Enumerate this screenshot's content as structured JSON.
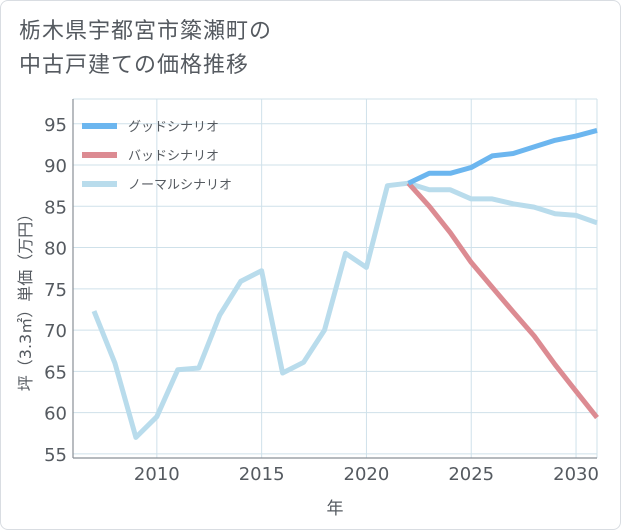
{
  "title": {
    "line1": "栃木県宇都宮市簗瀬町の",
    "line2": "中古戸建ての価格推移"
  },
  "colors": {
    "good": "#6cb6ef",
    "bad": "#dc8b92",
    "normal": "#b9dcec",
    "grid": "#cfe1ea",
    "text": "#555a60"
  },
  "chart_data": {
    "type": "line",
    "title": "栃木県宇都宮市簗瀬町の中古戸建ての価格推移",
    "xlabel": "年",
    "ylabel": "坪（3.3㎡）単価（万円）",
    "xlim": [
      2006,
      2031
    ],
    "ylim": [
      54.5,
      98
    ],
    "xticks": [
      2010,
      2015,
      2020,
      2025,
      2030
    ],
    "yticks": [
      55,
      60,
      65,
      70,
      75,
      80,
      85,
      90,
      95
    ],
    "grid": true,
    "legend_position": "top-left",
    "series": [
      {
        "name": "グッドシナリオ",
        "key": "good",
        "x": [
          2022,
          2023,
          2024,
          2025,
          2026,
          2027,
          2028,
          2029,
          2030,
          2031
        ],
        "values": [
          87.8,
          89.0,
          89.0,
          89.7,
          91.1,
          91.4,
          92.2,
          93.0,
          93.5,
          94.2
        ]
      },
      {
        "name": "バッドシナリオ",
        "key": "bad",
        "x": [
          2022,
          2023,
          2024,
          2025,
          2026,
          2027,
          2028,
          2029,
          2030,
          2031
        ],
        "values": [
          87.8,
          85.0,
          81.8,
          78.2,
          75.2,
          72.2,
          69.3,
          65.8,
          62.6,
          59.4
        ]
      },
      {
        "name": "ノーマルシナリオ",
        "key": "normal",
        "x": [
          2007,
          2008,
          2009,
          2010,
          2011,
          2012,
          2013,
          2014,
          2015,
          2016,
          2017,
          2018,
          2019,
          2020,
          2021,
          2022,
          2023,
          2024,
          2025,
          2026,
          2027,
          2028,
          2029,
          2030,
          2031
        ],
        "values": [
          72.3,
          66.0,
          57.0,
          59.5,
          65.2,
          65.4,
          71.8,
          75.9,
          77.2,
          64.8,
          66.1,
          70.0,
          79.3,
          77.6,
          87.5,
          87.8,
          87.0,
          87.0,
          85.9,
          85.9,
          85.3,
          84.9,
          84.1,
          83.9,
          83.0
        ]
      }
    ]
  }
}
